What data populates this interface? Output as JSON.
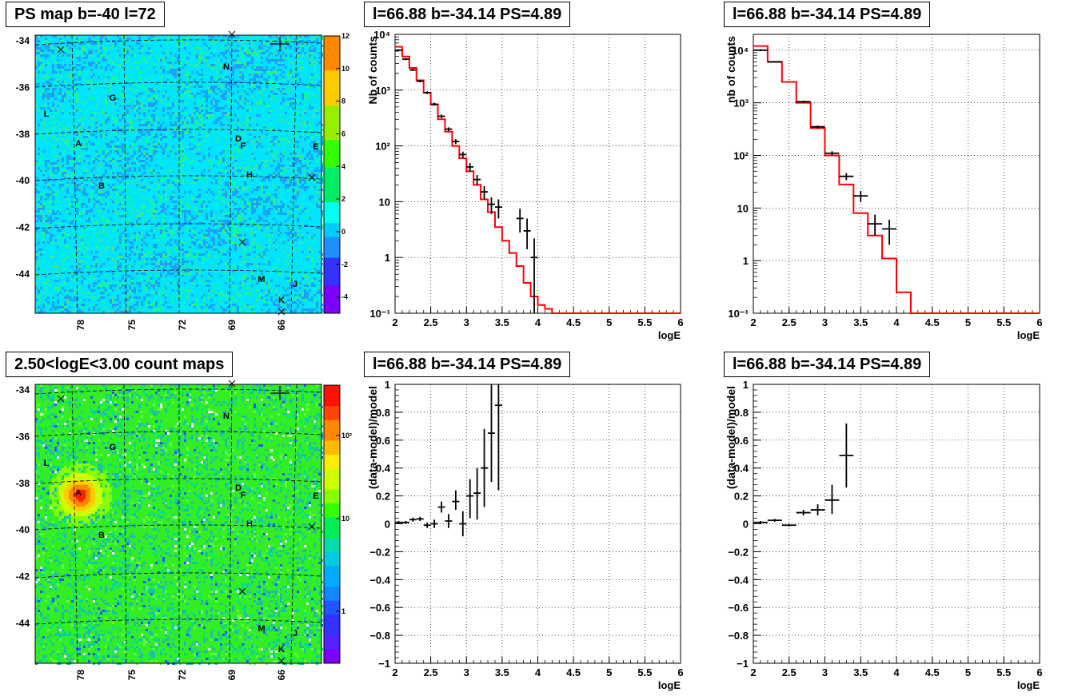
{
  "colors": {
    "model_line": "#ff0000",
    "data_marker": "#000000",
    "grid": "#000000"
  },
  "maps": [
    {
      "title": "PS map b=-40 l=72",
      "kind": "significance",
      "x_tick_labels": [
        "78",
        "75",
        "72",
        "69",
        "66"
      ],
      "y_tick_labels": [
        "-34",
        "-36",
        "-38",
        "-40",
        "-42",
        "-44"
      ],
      "colorbar_labels": [
        "12",
        "10",
        "8",
        "6",
        "4",
        "2",
        "0",
        "-2",
        "-4"
      ],
      "source_labels": [
        "N",
        "G",
        "L",
        "A",
        "D",
        "F",
        "E",
        "H",
        "B",
        "M",
        "J",
        "K"
      ]
    },
    {
      "title": "2.50<logE<3.00 count maps",
      "kind": "counts",
      "x_tick_labels": [
        "78",
        "75",
        "72",
        "69",
        "66"
      ],
      "y_tick_labels": [
        "-34",
        "-36",
        "-38",
        "-40",
        "-42",
        "-44"
      ],
      "colorbar_labels": [
        "10²",
        "10",
        "1"
      ],
      "source_labels": [
        "N",
        "G",
        "L",
        "A",
        "D",
        "F",
        "E",
        "H",
        "B",
        "M",
        "J",
        "K"
      ]
    }
  ],
  "chart_data": [
    {
      "type": "line",
      "title": "l=66.88 b=-34.14 PS=4.89",
      "xlabel": "logE",
      "ylabel": "Nb of counts",
      "log_y": true,
      "xlim": [
        2,
        6
      ],
      "ylim": [
        0.1,
        10000
      ],
      "grid": true,
      "x_tick_labels": [
        "2",
        "2.5",
        "3",
        "3.5",
        "4",
        "4.5",
        "5",
        "5.5",
        "6"
      ],
      "y_tick_labels": [
        "10⁻¹",
        "1",
        "10",
        "10²",
        "10³",
        "10⁴"
      ],
      "model_step": {
        "edges": [
          2,
          2.1,
          2.2,
          2.3,
          2.4,
          2.5,
          2.6,
          2.7,
          2.8,
          2.9,
          3.0,
          3.1,
          3.2,
          3.3,
          3.4,
          3.5,
          3.6,
          3.7,
          3.8,
          3.9,
          4.0,
          4.1,
          4.2,
          4.3,
          4.4,
          4.5,
          4.6,
          4.7,
          4.8,
          4.9,
          5.0,
          5.1,
          5.2,
          5.3,
          5.4,
          5.5,
          5.6,
          5.7,
          5.8,
          5.9,
          6.0
        ],
        "values": [
          6000,
          4000,
          2500,
          1500,
          900,
          550,
          300,
          180,
          100,
          60,
          35,
          20,
          11,
          6.5,
          3.5,
          2,
          1.2,
          0.7,
          0.35,
          0.2,
          0.14,
          0.12,
          0.1,
          0.1,
          0.1,
          0.1,
          0.1,
          0.1,
          0.1,
          0.1,
          0.1,
          0.1,
          0.1,
          0.1,
          0.1,
          0.1,
          0.1,
          0.1,
          0.1,
          0.1
        ]
      },
      "data_points": [
        {
          "x": 2.05,
          "y": 5200,
          "xerr": 0.05,
          "ylo": 5000,
          "yhi": 5400
        },
        {
          "x": 2.15,
          "y": 3600,
          "xerr": 0.05,
          "ylo": 3450,
          "yhi": 3750
        },
        {
          "x": 2.25,
          "y": 2300,
          "xerr": 0.05,
          "ylo": 2200,
          "yhi": 2400
        },
        {
          "x": 2.35,
          "y": 1450,
          "xerr": 0.05,
          "ylo": 1380,
          "yhi": 1520
        },
        {
          "x": 2.45,
          "y": 900,
          "xerr": 0.05,
          "ylo": 850,
          "yhi": 950
        },
        {
          "x": 2.55,
          "y": 560,
          "xerr": 0.05,
          "ylo": 525,
          "yhi": 595
        },
        {
          "x": 2.65,
          "y": 340,
          "xerr": 0.05,
          "ylo": 315,
          "yhi": 365
        },
        {
          "x": 2.75,
          "y": 200,
          "xerr": 0.05,
          "ylo": 185,
          "yhi": 215
        },
        {
          "x": 2.85,
          "y": 120,
          "xerr": 0.05,
          "ylo": 108,
          "yhi": 132
        },
        {
          "x": 2.95,
          "y": 70,
          "xerr": 0.05,
          "ylo": 61,
          "yhi": 79
        },
        {
          "x": 3.05,
          "y": 42,
          "xerr": 0.05,
          "ylo": 35,
          "yhi": 49
        },
        {
          "x": 3.15,
          "y": 25,
          "xerr": 0.05,
          "ylo": 20,
          "yhi": 30
        },
        {
          "x": 3.25,
          "y": 15,
          "xerr": 0.05,
          "ylo": 11,
          "yhi": 19
        },
        {
          "x": 3.35,
          "y": 9,
          "xerr": 0.05,
          "ylo": 6,
          "yhi": 12
        },
        {
          "x": 3.45,
          "y": 8,
          "xerr": 0.05,
          "ylo": 5,
          "yhi": 11
        },
        {
          "x": 3.75,
          "y": 5,
          "xerr": 0.05,
          "ylo": 2.8,
          "yhi": 7.5
        },
        {
          "x": 3.85,
          "y": 3,
          "xerr": 0.05,
          "ylo": 1.4,
          "yhi": 5
        },
        {
          "x": 3.95,
          "y": 1,
          "xerr": 0.05,
          "ylo": 0.1,
          "yhi": 2.2
        }
      ]
    },
    {
      "type": "line",
      "title": "l=66.88 b=-34.14 PS=4.89",
      "xlabel": "logE",
      "ylabel": "nb of counts",
      "log_y": true,
      "xlim": [
        2,
        6
      ],
      "ylim": [
        0.1,
        20000
      ],
      "grid": true,
      "x_tick_labels": [
        "2",
        "2.5",
        "3",
        "3.5",
        "4",
        "4.5",
        "5",
        "5.5",
        "6"
      ],
      "y_tick_labels": [
        "10⁻¹",
        "1",
        "10",
        "10²",
        "10³",
        "10⁴"
      ],
      "model_step": {
        "edges": [
          2,
          2.2,
          2.4,
          2.6,
          2.8,
          3.0,
          3.2,
          3.4,
          3.6,
          3.8,
          4.0,
          4.2,
          4.4,
          4.6,
          4.8,
          5.0,
          5.2,
          5.4,
          5.6,
          5.8,
          6.0
        ],
        "values": [
          12000,
          6000,
          2500,
          1000,
          330,
          100,
          28,
          8,
          3,
          1.1,
          0.25,
          0.1,
          0.1,
          0.1,
          0.1,
          0.1,
          0.1,
          0.1,
          0.1,
          0.1
        ]
      },
      "data_points": [
        {
          "x": 2.1,
          "y": 10000,
          "xerr": 0.1,
          "ylo": 9600,
          "yhi": 10400
        },
        {
          "x": 2.3,
          "y": 6000,
          "xerr": 0.1,
          "ylo": 5800,
          "yhi": 6200
        },
        {
          "x": 2.7,
          "y": 1050,
          "xerr": 0.1,
          "ylo": 1000,
          "yhi": 1100
        },
        {
          "x": 2.9,
          "y": 350,
          "xerr": 0.1,
          "ylo": 330,
          "yhi": 370
        },
        {
          "x": 3.1,
          "y": 110,
          "xerr": 0.1,
          "ylo": 100,
          "yhi": 120
        },
        {
          "x": 3.3,
          "y": 40,
          "xerr": 0.1,
          "ylo": 34,
          "yhi": 46
        },
        {
          "x": 3.5,
          "y": 17,
          "xerr": 0.1,
          "ylo": 13,
          "yhi": 21
        },
        {
          "x": 3.7,
          "y": 5,
          "xerr": 0.1,
          "ylo": 3,
          "yhi": 7.5
        },
        {
          "x": 3.9,
          "y": 4,
          "xerr": 0.1,
          "ylo": 2,
          "yhi": 6
        }
      ]
    },
    {
      "type": "scatter",
      "title": "l=66.88 b=-34.14 PS=4.89",
      "xlabel": "logE",
      "ylabel": "(data-model)/model",
      "log_y": false,
      "xlim": [
        2,
        6
      ],
      "ylim": [
        -1,
        1
      ],
      "grid": true,
      "x_tick_labels": [
        "2",
        "2.5",
        "3",
        "3.5",
        "4",
        "4.5",
        "5",
        "5.5",
        "6"
      ],
      "y_tick_labels": [
        "−1",
        "−0.8",
        "−0.6",
        "−0.4",
        "−0.2",
        "0",
        "0.2",
        "0.4",
        "0.6",
        "0.8",
        "1"
      ],
      "data_points": [
        {
          "x": 2.05,
          "y": 0.01,
          "xerr": 0.05,
          "ylo": 0.0,
          "yhi": 0.02
        },
        {
          "x": 2.15,
          "y": 0.01,
          "xerr": 0.05,
          "ylo": 0.0,
          "yhi": 0.02
        },
        {
          "x": 2.25,
          "y": 0.03,
          "xerr": 0.05,
          "ylo": 0.015,
          "yhi": 0.045
        },
        {
          "x": 2.35,
          "y": 0.035,
          "xerr": 0.05,
          "ylo": 0.02,
          "yhi": 0.05
        },
        {
          "x": 2.45,
          "y": -0.01,
          "xerr": 0.05,
          "ylo": -0.03,
          "yhi": 0.01
        },
        {
          "x": 2.55,
          "y": 0.0,
          "xerr": 0.05,
          "ylo": -0.03,
          "yhi": 0.03
        },
        {
          "x": 2.65,
          "y": 0.12,
          "xerr": 0.05,
          "ylo": 0.08,
          "yhi": 0.16
        },
        {
          "x": 2.75,
          "y": 0.02,
          "xerr": 0.05,
          "ylo": -0.03,
          "yhi": 0.07
        },
        {
          "x": 2.85,
          "y": 0.16,
          "xerr": 0.05,
          "ylo": 0.1,
          "yhi": 0.24
        },
        {
          "x": 2.95,
          "y": 0.0,
          "xerr": 0.05,
          "ylo": -0.09,
          "yhi": 0.09
        },
        {
          "x": 3.05,
          "y": 0.2,
          "xerr": 0.05,
          "ylo": 0.04,
          "yhi": 0.32
        },
        {
          "x": 3.15,
          "y": 0.22,
          "xerr": 0.05,
          "ylo": 0.03,
          "yhi": 0.4
        },
        {
          "x": 3.25,
          "y": 0.4,
          "xerr": 0.05,
          "ylo": 0.12,
          "yhi": 0.68
        },
        {
          "x": 3.35,
          "y": 0.65,
          "xerr": 0.05,
          "ylo": 0.3,
          "yhi": 1.0
        },
        {
          "x": 3.45,
          "y": 0.85,
          "xerr": 0.05,
          "ylo": 0.24,
          "yhi": 1.0
        }
      ]
    },
    {
      "type": "scatter",
      "title": "l=66.88 b=-34.14 PS=4.89",
      "xlabel": "logE",
      "ylabel": "(data-model)/model",
      "log_y": false,
      "xlim": [
        2,
        6
      ],
      "ylim": [
        -1,
        1
      ],
      "grid": true,
      "x_tick_labels": [
        "2",
        "2.5",
        "3",
        "3.5",
        "4",
        "4.5",
        "5",
        "5.5",
        "6"
      ],
      "y_tick_labels": [
        "−1",
        "−0.8",
        "−0.6",
        "−0.4",
        "−0.2",
        "0",
        "0.2",
        "0.4",
        "0.6",
        "0.8",
        "1"
      ],
      "data_points": [
        {
          "x": 2.1,
          "y": 0.01,
          "xerr": 0.1,
          "ylo": 0.0,
          "yhi": 0.02
        },
        {
          "x": 2.3,
          "y": 0.025,
          "xerr": 0.1,
          "ylo": 0.015,
          "yhi": 0.035
        },
        {
          "x": 2.5,
          "y": -0.01,
          "xerr": 0.1,
          "ylo": -0.02,
          "yhi": 0.0
        },
        {
          "x": 2.7,
          "y": 0.08,
          "xerr": 0.1,
          "ylo": 0.06,
          "yhi": 0.1
        },
        {
          "x": 2.9,
          "y": 0.1,
          "xerr": 0.1,
          "ylo": 0.06,
          "yhi": 0.14
        },
        {
          "x": 3.1,
          "y": 0.17,
          "xerr": 0.1,
          "ylo": 0.07,
          "yhi": 0.28
        },
        {
          "x": 3.3,
          "y": 0.49,
          "xerr": 0.1,
          "ylo": 0.26,
          "yhi": 0.72
        }
      ]
    }
  ]
}
